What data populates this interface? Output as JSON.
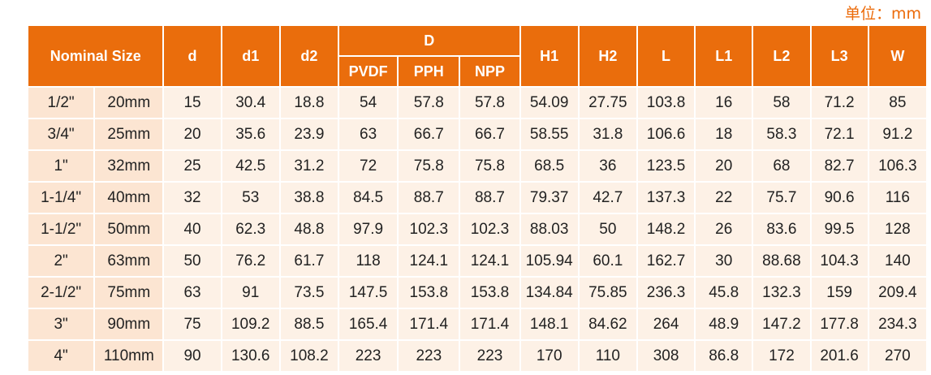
{
  "unit": "单位：mm",
  "table": {
    "header": {
      "nominal_size": "Nominal Size",
      "columns_before": [
        "d",
        "d1",
        "d2"
      ],
      "group": "D",
      "group_columns": [
        "PVDF",
        "PPH",
        "NPP"
      ],
      "columns_after": [
        "H1",
        "H2",
        "L",
        "L1",
        "L2",
        "L3",
        "W"
      ]
    },
    "rows": [
      [
        "1/2\"",
        "20mm",
        "15",
        "30.4",
        "18.8",
        "54",
        "57.8",
        "57.8",
        "54.09",
        "27.75",
        "103.8",
        "16",
        "58",
        "71.2",
        "85"
      ],
      [
        "3/4\"",
        "25mm",
        "20",
        "35.6",
        "23.9",
        "63",
        "66.7",
        "66.7",
        "58.55",
        "31.8",
        "106.6",
        "18",
        "58.3",
        "72.1",
        "91.2"
      ],
      [
        "1\"",
        "32mm",
        "25",
        "42.5",
        "31.2",
        "72",
        "75.8",
        "75.8",
        "68.5",
        "36",
        "123.5",
        "20",
        "68",
        "82.7",
        "106.3"
      ],
      [
        "1-1/4\"",
        "40mm",
        "32",
        "53",
        "38.8",
        "84.5",
        "88.7",
        "88.7",
        "79.37",
        "42.7",
        "137.3",
        "22",
        "75.7",
        "90.6",
        "116"
      ],
      [
        "1-1/2\"",
        "50mm",
        "40",
        "62.3",
        "48.8",
        "97.9",
        "102.3",
        "102.3",
        "88.03",
        "50",
        "148.2",
        "26",
        "83.6",
        "99.5",
        "128"
      ],
      [
        "2\"",
        "63mm",
        "50",
        "76.2",
        "61.7",
        "118",
        "124.1",
        "124.1",
        "105.94",
        "60.1",
        "162.7",
        "30",
        "88.68",
        "104.3",
        "140"
      ],
      [
        "2-1/2\"",
        "75mm",
        "63",
        "91",
        "73.5",
        "147.5",
        "153.8",
        "153.8",
        "134.84",
        "75.85",
        "236.3",
        "45.8",
        "132.3",
        "159",
        "209.4"
      ],
      [
        "3\"",
        "90mm",
        "75",
        "109.2",
        "88.5",
        "165.4",
        "171.4",
        "171.4",
        "148.1",
        "84.62",
        "264",
        "48.9",
        "147.2",
        "177.8",
        "234.3"
      ],
      [
        "4\"",
        "110mm",
        "90",
        "130.6",
        "108.2",
        "223",
        "223",
        "223",
        "170",
        "110",
        "308",
        "86.8",
        "172",
        "201.6",
        "270"
      ]
    ]
  }
}
